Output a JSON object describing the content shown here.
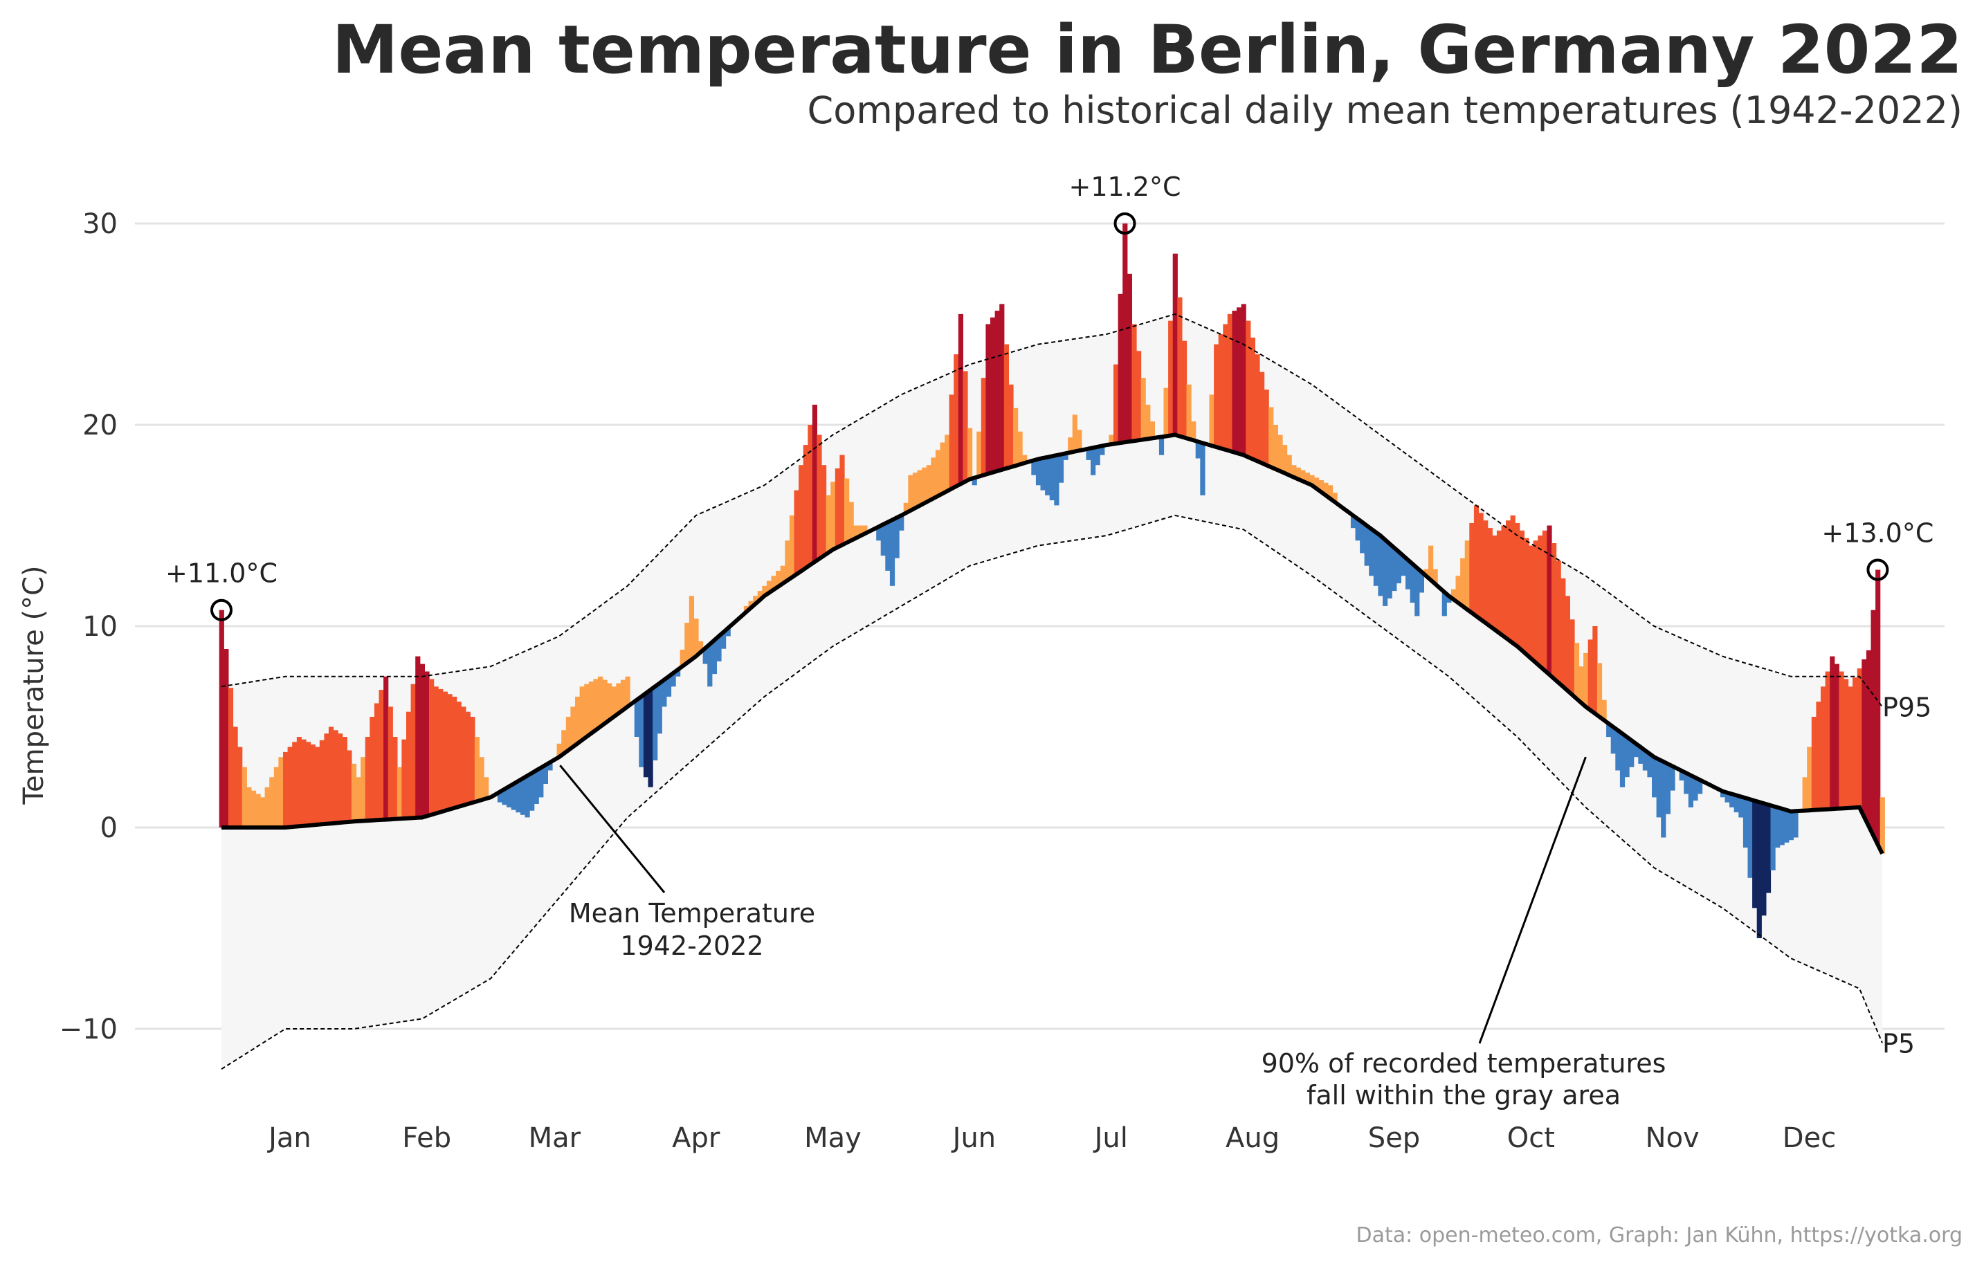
{
  "title": "Mean temperature in Berlin, Germany 2022",
  "subtitle": "Compared to historical daily mean temperatures (1942-2022)",
  "caption": "Data: open-meteo.com, Graph: Jan Kühn, https://yotka.org",
  "chart_data": {
    "type": "area",
    "title": "Mean temperature in Berlin, Germany 2022",
    "subtitle": "Compared to historical daily mean temperatures (1942-2022)",
    "ylabel": "Temperature (°C)",
    "xlabel": "",
    "ylim": [
      -13,
      32
    ],
    "xlim": [
      1,
      365
    ],
    "grid": true,
    "y_ticks": [
      30,
      20,
      10,
      0,
      -10
    ],
    "y_tick_labels": [
      "30",
      "20",
      "10",
      "0",
      "−10"
    ],
    "months": [
      "Jan",
      "Feb",
      "Mar",
      "Apr",
      "May",
      "Jun",
      "Jul",
      "Aug",
      "Sep",
      "Oct",
      "Nov",
      "Dec"
    ],
    "month_label_days": [
      16,
      46,
      74,
      105,
      135,
      166,
      196,
      227,
      258,
      288,
      319,
      349
    ],
    "series": [
      {
        "name": "Mean Temperature 1942-2022",
        "x": [
          1,
          15,
          30,
          45,
          60,
          75,
          90,
          105,
          120,
          135,
          150,
          165,
          180,
          195,
          210,
          225,
          240,
          255,
          270,
          285,
          300,
          315,
          330,
          345,
          360,
          365
        ],
        "y": [
          0,
          0,
          0.3,
          0.5,
          1.5,
          3.5,
          6.0,
          8.5,
          11.5,
          13.8,
          15.5,
          17.3,
          18.3,
          19.0,
          19.5,
          18.5,
          17.0,
          14.5,
          11.5,
          9.0,
          6.0,
          3.5,
          1.8,
          0.8,
          1.0,
          -1.3
        ]
      },
      {
        "name": "P95",
        "x": [
          1,
          15,
          30,
          45,
          60,
          75,
          90,
          105,
          120,
          135,
          150,
          165,
          180,
          195,
          210,
          225,
          240,
          255,
          270,
          285,
          300,
          315,
          330,
          345,
          360,
          365
        ],
        "y": [
          7.0,
          7.5,
          7.5,
          7.5,
          8.0,
          9.5,
          12.0,
          15.5,
          17.0,
          19.5,
          21.5,
          23.0,
          24.0,
          24.5,
          25.5,
          24.0,
          22.0,
          19.5,
          17.0,
          14.5,
          12.5,
          10.0,
          8.5,
          7.5,
          7.5,
          6.0
        ]
      },
      {
        "name": "P5",
        "x": [
          1,
          15,
          30,
          45,
          60,
          75,
          90,
          105,
          120,
          135,
          150,
          165,
          180,
          195,
          210,
          225,
          240,
          255,
          270,
          285,
          300,
          315,
          330,
          345,
          360,
          365
        ],
        "y": [
          -12.0,
          -10.0,
          -10.0,
          -9.5,
          -7.5,
          -3.5,
          0.5,
          3.5,
          6.5,
          9.0,
          11.0,
          13.0,
          14.0,
          14.5,
          15.5,
          14.8,
          12.5,
          10.0,
          7.5,
          4.5,
          1.0,
          -2.0,
          -4.0,
          -6.5,
          -8.0,
          -10.7
        ]
      },
      {
        "name": "2022",
        "x": [
          1,
          4,
          7,
          10,
          14,
          18,
          22,
          25,
          28,
          31,
          34,
          37,
          40,
          44,
          48,
          52,
          56,
          60,
          64,
          68,
          71,
          74,
          77,
          80,
          84,
          87,
          90,
          93,
          95,
          98,
          101,
          104,
          108,
          112,
          116,
          120,
          124,
          128,
          131,
          134,
          137,
          140,
          144,
          148,
          152,
          156,
          160,
          163,
          166,
          169,
          172,
          174,
          177,
          180,
          184,
          188,
          192,
          196,
          199,
          201,
          204,
          207,
          210,
          213,
          216,
          219,
          222,
          225,
          228,
          232,
          236,
          240,
          244,
          248,
          252,
          256,
          260,
          263,
          266,
          269,
          272,
          276,
          280,
          284,
          288,
          292,
          296,
          299,
          302,
          305,
          308,
          311,
          314,
          317,
          320,
          323,
          326,
          330,
          334,
          338,
          342,
          346,
          350,
          354,
          358,
          362,
          364,
          365
        ],
        "y": [
          10.8,
          5.0,
          2.0,
          1.5,
          3.5,
          4.5,
          4.0,
          5.0,
          4.5,
          2.5,
          5.5,
          7.5,
          3.0,
          8.5,
          7.0,
          6.5,
          5.5,
          1.5,
          1.0,
          0.5,
          1.5,
          3.5,
          5.5,
          7.0,
          7.5,
          7.0,
          7.5,
          3.0,
          2.0,
          6.0,
          7.5,
          11.5,
          7.0,
          9.5,
          11.0,
          12.0,
          13.0,
          18.0,
          21.0,
          16.5,
          18.5,
          15.0,
          15.0,
          12.0,
          17.5,
          18.0,
          19.5,
          25.5,
          17.0,
          25.0,
          26.0,
          22.0,
          18.5,
          17.0,
          16.0,
          20.5,
          17.5,
          19.5,
          30.0,
          25.0,
          21.0,
          18.5,
          28.5,
          22.0,
          16.5,
          24.0,
          25.5,
          26.0,
          23.5,
          20.0,
          18.0,
          17.5,
          17.0,
          15.5,
          13.0,
          11.0,
          12.5,
          10.5,
          14.0,
          10.5,
          12.5,
          16.0,
          14.5,
          15.5,
          14.0,
          15.0,
          11.5,
          8.0,
          10.0,
          4.5,
          2.0,
          3.5,
          2.5,
          -0.5,
          3.0,
          1.0,
          2.0,
          1.5,
          0.5,
          -5.5,
          -1.0,
          -0.5,
          5.5,
          8.5,
          7.0,
          8.8,
          12.8,
          1.5
        ]
      }
    ],
    "annotations": [
      {
        "text": "+11.0°C",
        "x": 1,
        "y": 10.8
      },
      {
        "text": "+11.2°C",
        "x": 199,
        "y": 30.0
      },
      {
        "text": "+13.0°C",
        "x": 364,
        "y": 12.8
      },
      {
        "text": "P95",
        "x": 365,
        "y": 6.0
      },
      {
        "text": "P5",
        "x": 365,
        "y": -10.7
      },
      {
        "text": "Mean Temperature",
        "text2": "1942-2022",
        "x": 74,
        "y": 3.5
      },
      {
        "text": "90% of recorded temperatures",
        "text2": "fall within the gray area",
        "x": 300,
        "y": 3.5
      }
    ],
    "colors": {
      "band": "#f6f6f6",
      "warm_light": "#fca14a",
      "warm_mid": "#f2542d",
      "warm_dark": "#b1122a",
      "cold_light": "#3d7fc2",
      "cold_dark": "#12255f",
      "mean_line": "#000000",
      "percentile_line": "#000000",
      "grid": "#e3e3e3"
    }
  }
}
